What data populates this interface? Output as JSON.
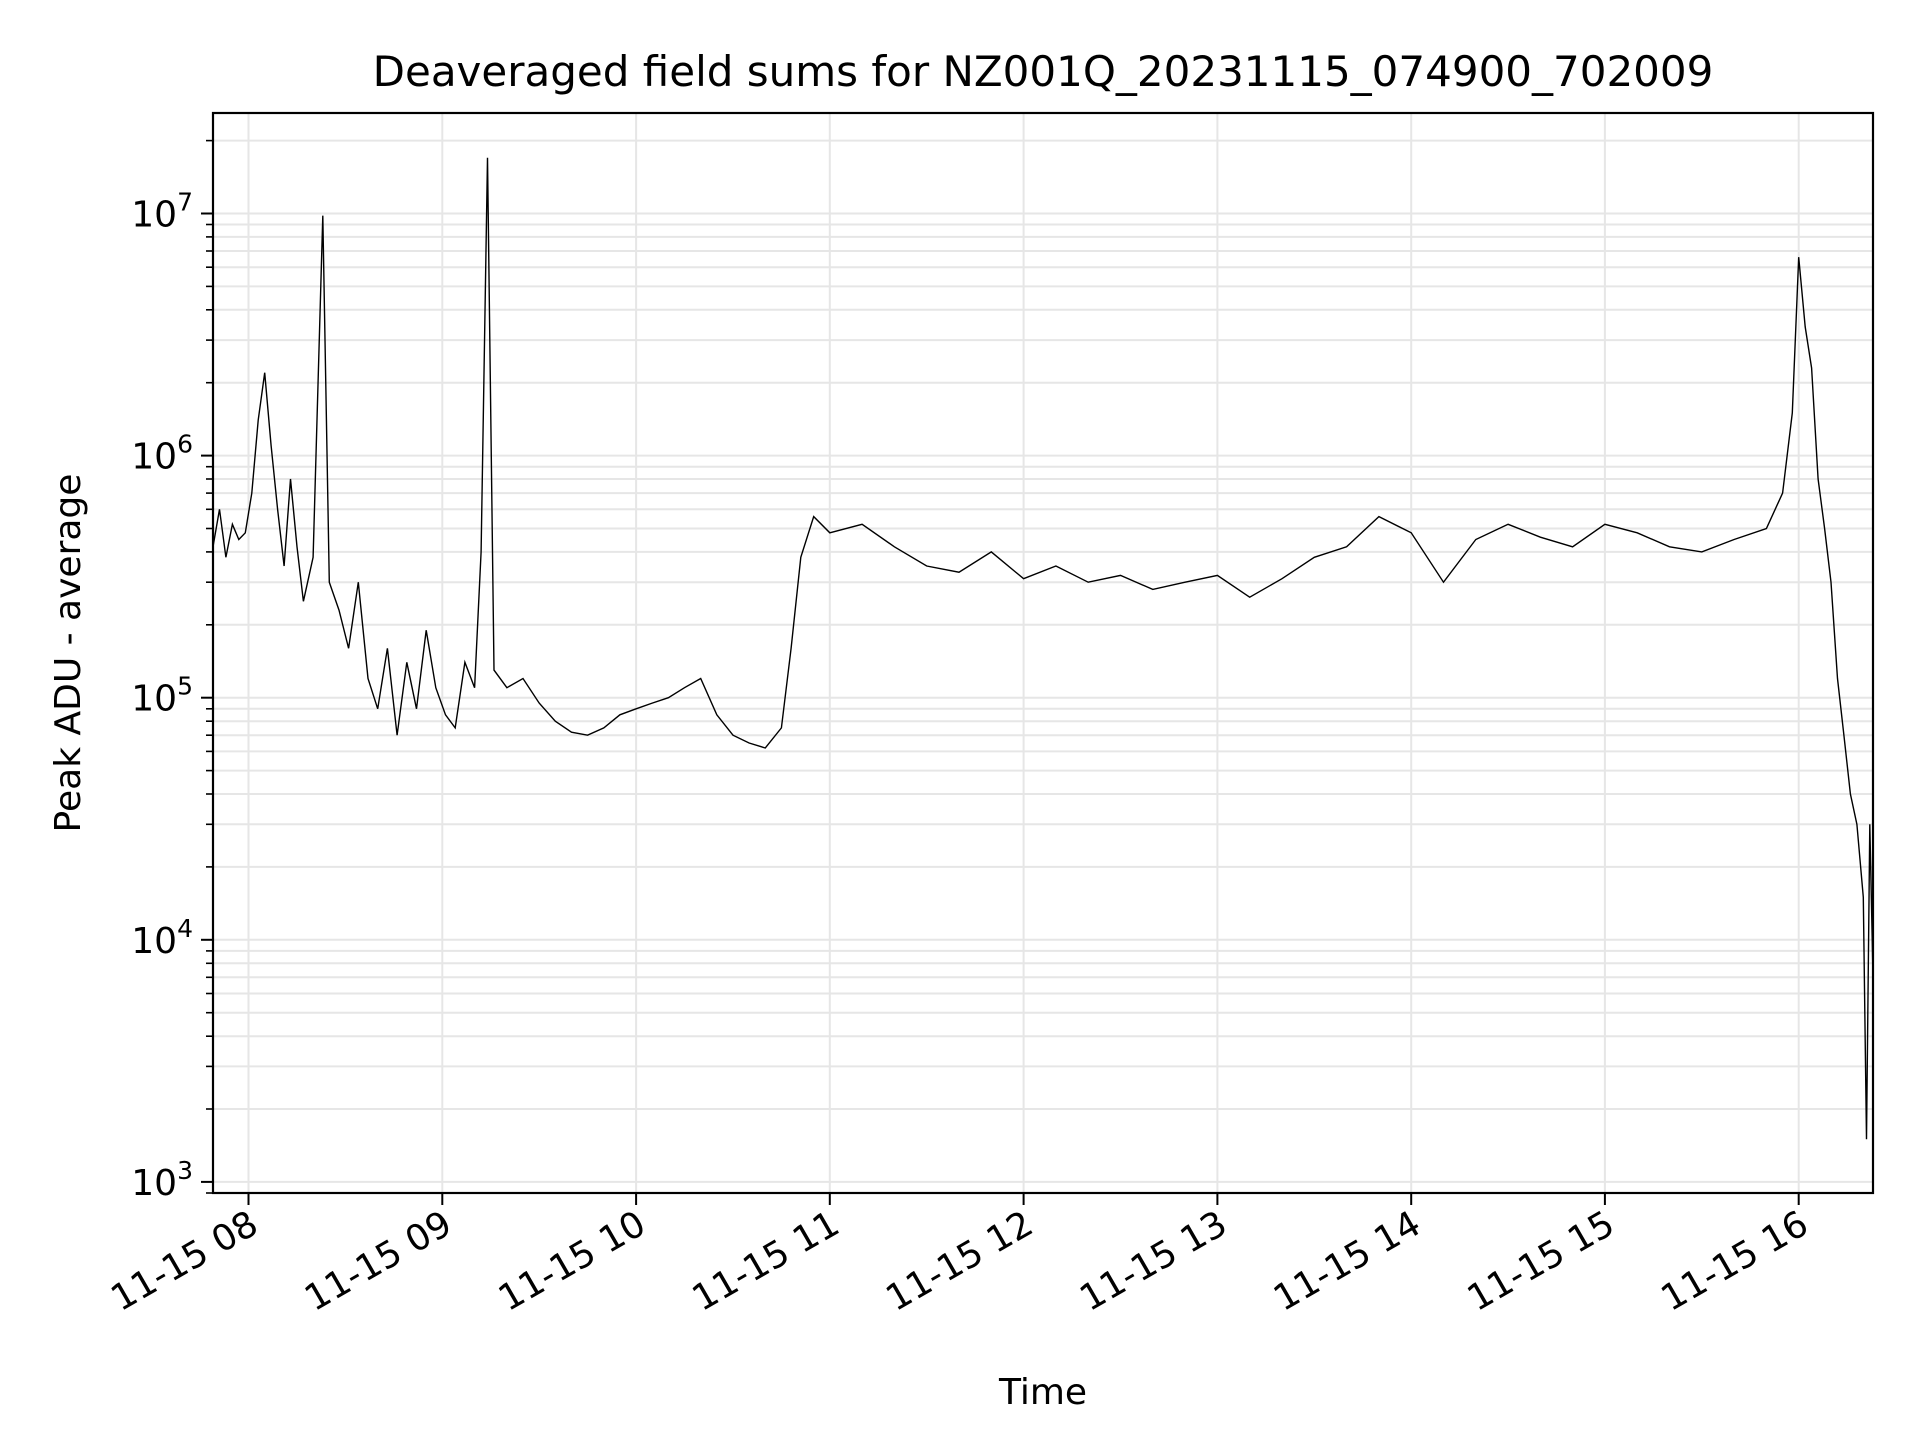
{
  "chart_data": {
    "type": "line",
    "title": "Deaveraged field sums for NZ001Q_20231115_074900_702009",
    "xlabel": "Time",
    "ylabel": "Peak ADU - average",
    "yscale": "log",
    "xlim": [
      "2023-11-15 07:49",
      "2023-11-15 16:23"
    ],
    "ylim": [
      900,
      26000000
    ],
    "grid": true,
    "line_color": "#000000",
    "grid_color": "#e6e6e6",
    "x_ticks": [
      {
        "value": "2023-11-15 08:00",
        "label": "11-15 08"
      },
      {
        "value": "2023-11-15 09:00",
        "label": "11-15 09"
      },
      {
        "value": "2023-11-15 10:00",
        "label": "11-15 10"
      },
      {
        "value": "2023-11-15 11:00",
        "label": "11-15 11"
      },
      {
        "value": "2023-11-15 12:00",
        "label": "11-15 12"
      },
      {
        "value": "2023-11-15 13:00",
        "label": "11-15 13"
      },
      {
        "value": "2023-11-15 14:00",
        "label": "11-15 14"
      },
      {
        "value": "2023-11-15 15:00",
        "label": "11-15 15"
      },
      {
        "value": "2023-11-15 16:00",
        "label": "11-15 16"
      }
    ],
    "y_ticks": [
      {
        "value": 1000,
        "base": "10",
        "exp": "3"
      },
      {
        "value": 10000,
        "base": "10",
        "exp": "4"
      },
      {
        "value": 100000,
        "base": "10",
        "exp": "5"
      },
      {
        "value": 1000000,
        "base": "10",
        "exp": "6"
      },
      {
        "value": 10000000,
        "base": "10",
        "exp": "7"
      }
    ],
    "series": [
      {
        "points": [
          [
            "2023-11-15 07:49",
            420000
          ],
          [
            "2023-11-15 07:51",
            600000
          ],
          [
            "2023-11-15 07:53",
            380000
          ],
          [
            "2023-11-15 07:55",
            520000
          ],
          [
            "2023-11-15 07:57",
            450000
          ],
          [
            "2023-11-15 07:59",
            480000
          ],
          [
            "2023-11-15 08:01",
            700000
          ],
          [
            "2023-11-15 08:03",
            1400000
          ],
          [
            "2023-11-15 08:05",
            2200000
          ],
          [
            "2023-11-15 08:07",
            1100000
          ],
          [
            "2023-11-15 08:09",
            600000
          ],
          [
            "2023-11-15 08:11",
            350000
          ],
          [
            "2023-11-15 08:13",
            800000
          ],
          [
            "2023-11-15 08:15",
            420000
          ],
          [
            "2023-11-15 08:17",
            250000
          ],
          [
            "2023-11-15 08:20",
            380000
          ],
          [
            "2023-11-15 08:23",
            9800000
          ],
          [
            "2023-11-15 08:25",
            300000
          ],
          [
            "2023-11-15 08:28",
            230000
          ],
          [
            "2023-11-15 08:31",
            160000
          ],
          [
            "2023-11-15 08:34",
            300000
          ],
          [
            "2023-11-15 08:37",
            120000
          ],
          [
            "2023-11-15 08:40",
            90000
          ],
          [
            "2023-11-15 08:43",
            160000
          ],
          [
            "2023-11-15 08:46",
            70000
          ],
          [
            "2023-11-15 08:49",
            140000
          ],
          [
            "2023-11-15 08:52",
            90000
          ],
          [
            "2023-11-15 08:55",
            190000
          ],
          [
            "2023-11-15 08:58",
            110000
          ],
          [
            "2023-11-15 09:01",
            85000
          ],
          [
            "2023-11-15 09:04",
            75000
          ],
          [
            "2023-11-15 09:07",
            140000
          ],
          [
            "2023-11-15 09:10",
            110000
          ],
          [
            "2023-11-15 09:12",
            400000
          ],
          [
            "2023-11-15 09:14",
            17000000
          ],
          [
            "2023-11-15 09:16",
            130000
          ],
          [
            "2023-11-15 09:20",
            110000
          ],
          [
            "2023-11-15 09:25",
            120000
          ],
          [
            "2023-11-15 09:30",
            95000
          ],
          [
            "2023-11-15 09:35",
            80000
          ],
          [
            "2023-11-15 09:40",
            72000
          ],
          [
            "2023-11-15 09:45",
            70000
          ],
          [
            "2023-11-15 09:50",
            75000
          ],
          [
            "2023-11-15 09:55",
            85000
          ],
          [
            "2023-11-15 10:00",
            90000
          ],
          [
            "2023-11-15 10:05",
            95000
          ],
          [
            "2023-11-15 10:10",
            100000
          ],
          [
            "2023-11-15 10:15",
            110000
          ],
          [
            "2023-11-15 10:20",
            120000
          ],
          [
            "2023-11-15 10:25",
            85000
          ],
          [
            "2023-11-15 10:30",
            70000
          ],
          [
            "2023-11-15 10:35",
            65000
          ],
          [
            "2023-11-15 10:40",
            62000
          ],
          [
            "2023-11-15 10:45",
            75000
          ],
          [
            "2023-11-15 10:48",
            160000
          ],
          [
            "2023-11-15 10:51",
            380000
          ],
          [
            "2023-11-15 10:55",
            560000
          ],
          [
            "2023-11-15 11:00",
            480000
          ],
          [
            "2023-11-15 11:10",
            520000
          ],
          [
            "2023-11-15 11:20",
            420000
          ],
          [
            "2023-11-15 11:30",
            350000
          ],
          [
            "2023-11-15 11:40",
            330000
          ],
          [
            "2023-11-15 11:50",
            400000
          ],
          [
            "2023-11-15 12:00",
            310000
          ],
          [
            "2023-11-15 12:10",
            350000
          ],
          [
            "2023-11-15 12:20",
            300000
          ],
          [
            "2023-11-15 12:30",
            320000
          ],
          [
            "2023-11-15 12:40",
            280000
          ],
          [
            "2023-11-15 12:50",
            300000
          ],
          [
            "2023-11-15 13:00",
            320000
          ],
          [
            "2023-11-15 13:10",
            260000
          ],
          [
            "2023-11-15 13:20",
            310000
          ],
          [
            "2023-11-15 13:30",
            380000
          ],
          [
            "2023-11-15 13:40",
            420000
          ],
          [
            "2023-11-15 13:50",
            560000
          ],
          [
            "2023-11-15 14:00",
            480000
          ],
          [
            "2023-11-15 14:10",
            300000
          ],
          [
            "2023-11-15 14:20",
            450000
          ],
          [
            "2023-11-15 14:30",
            520000
          ],
          [
            "2023-11-15 14:40",
            460000
          ],
          [
            "2023-11-15 14:50",
            420000
          ],
          [
            "2023-11-15 15:00",
            520000
          ],
          [
            "2023-11-15 15:10",
            480000
          ],
          [
            "2023-11-15 15:20",
            420000
          ],
          [
            "2023-11-15 15:30",
            400000
          ],
          [
            "2023-11-15 15:40",
            450000
          ],
          [
            "2023-11-15 15:50",
            500000
          ],
          [
            "2023-11-15 15:55",
            700000
          ],
          [
            "2023-11-15 15:58",
            1500000
          ],
          [
            "2023-11-15 16:00",
            6600000
          ],
          [
            "2023-11-15 16:02",
            3400000
          ],
          [
            "2023-11-15 16:04",
            2300000
          ],
          [
            "2023-11-15 16:06",
            800000
          ],
          [
            "2023-11-15 16:08",
            500000
          ],
          [
            "2023-11-15 16:10",
            300000
          ],
          [
            "2023-11-15 16:12",
            120000
          ],
          [
            "2023-11-15 16:14",
            70000
          ],
          [
            "2023-11-15 16:16",
            40000
          ],
          [
            "2023-11-15 16:18",
            30000
          ],
          [
            "2023-11-15 16:20",
            15000
          ],
          [
            "2023-11-15 16:21",
            1500
          ],
          [
            "2023-11-15 16:22",
            30000
          ],
          [
            "2023-11-15 16:23",
            7000
          ]
        ]
      }
    ]
  }
}
